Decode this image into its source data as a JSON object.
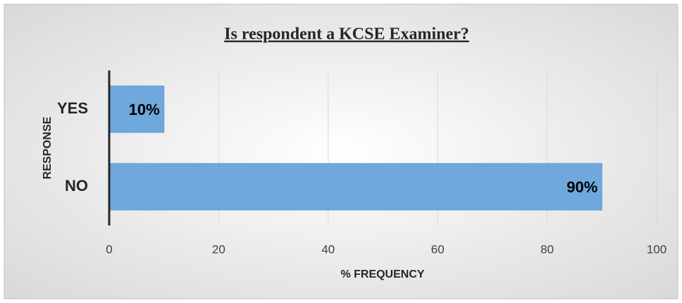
{
  "chart_data": {
    "type": "bar",
    "orientation": "horizontal",
    "title": "Is respondent a KCSE Examiner?",
    "xlabel": "% FREQUENCY",
    "ylabel": "RESPONSE",
    "categories": [
      "YES",
      "NO"
    ],
    "values": [
      10,
      90
    ],
    "value_labels": [
      "10%",
      "90%"
    ],
    "color": "#6fa8dc",
    "xlim": [
      0,
      100
    ],
    "xticks": [
      0,
      20,
      40,
      60,
      80,
      100
    ],
    "grid": true
  }
}
